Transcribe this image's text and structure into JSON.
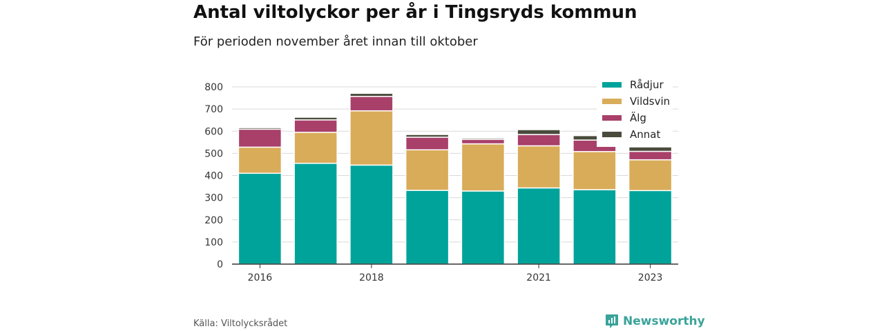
{
  "title": "Antal viltolyckor per år i Tingsryds kommun",
  "subtitle": "För perioden november året innan till oktober",
  "source": "Källa: Viltolycksrådet",
  "brand": "Newsworthy",
  "colors": {
    "radjur": "#00a39a",
    "vildsvin": "#d9ac5a",
    "alg": "#a8406a",
    "annat": "#4a4b3c"
  },
  "chart_data": {
    "type": "bar",
    "stacked": true,
    "categories": [
      "2016",
      "2017",
      "2018",
      "2019",
      "2020",
      "2021",
      "2022",
      "2023"
    ],
    "x_tick_labels": [
      "2016",
      "",
      "2018",
      "",
      "",
      "2021",
      "",
      "2023"
    ],
    "series": [
      {
        "name": "Rådjur",
        "color": "#00a39a",
        "values": [
          410,
          455,
          447,
          333,
          330,
          344,
          336,
          332
        ]
      },
      {
        "name": "Vildsvin",
        "color": "#d9ac5a",
        "values": [
          118,
          140,
          245,
          183,
          213,
          190,
          172,
          139
        ]
      },
      {
        "name": "Älg",
        "color": "#a8406a",
        "values": [
          81,
          56,
          65,
          57,
          20,
          51,
          52,
          38
        ]
      },
      {
        "name": "Annat",
        "color": "#4a4b3c",
        "values": [
          7,
          12,
          14,
          12,
          6,
          22,
          20,
          20
        ]
      }
    ],
    "ylim": [
      0,
      800
    ],
    "yticks": [
      0,
      100,
      200,
      300,
      400,
      500,
      600,
      700,
      800
    ],
    "grid": true,
    "legend_position": "top-right"
  }
}
